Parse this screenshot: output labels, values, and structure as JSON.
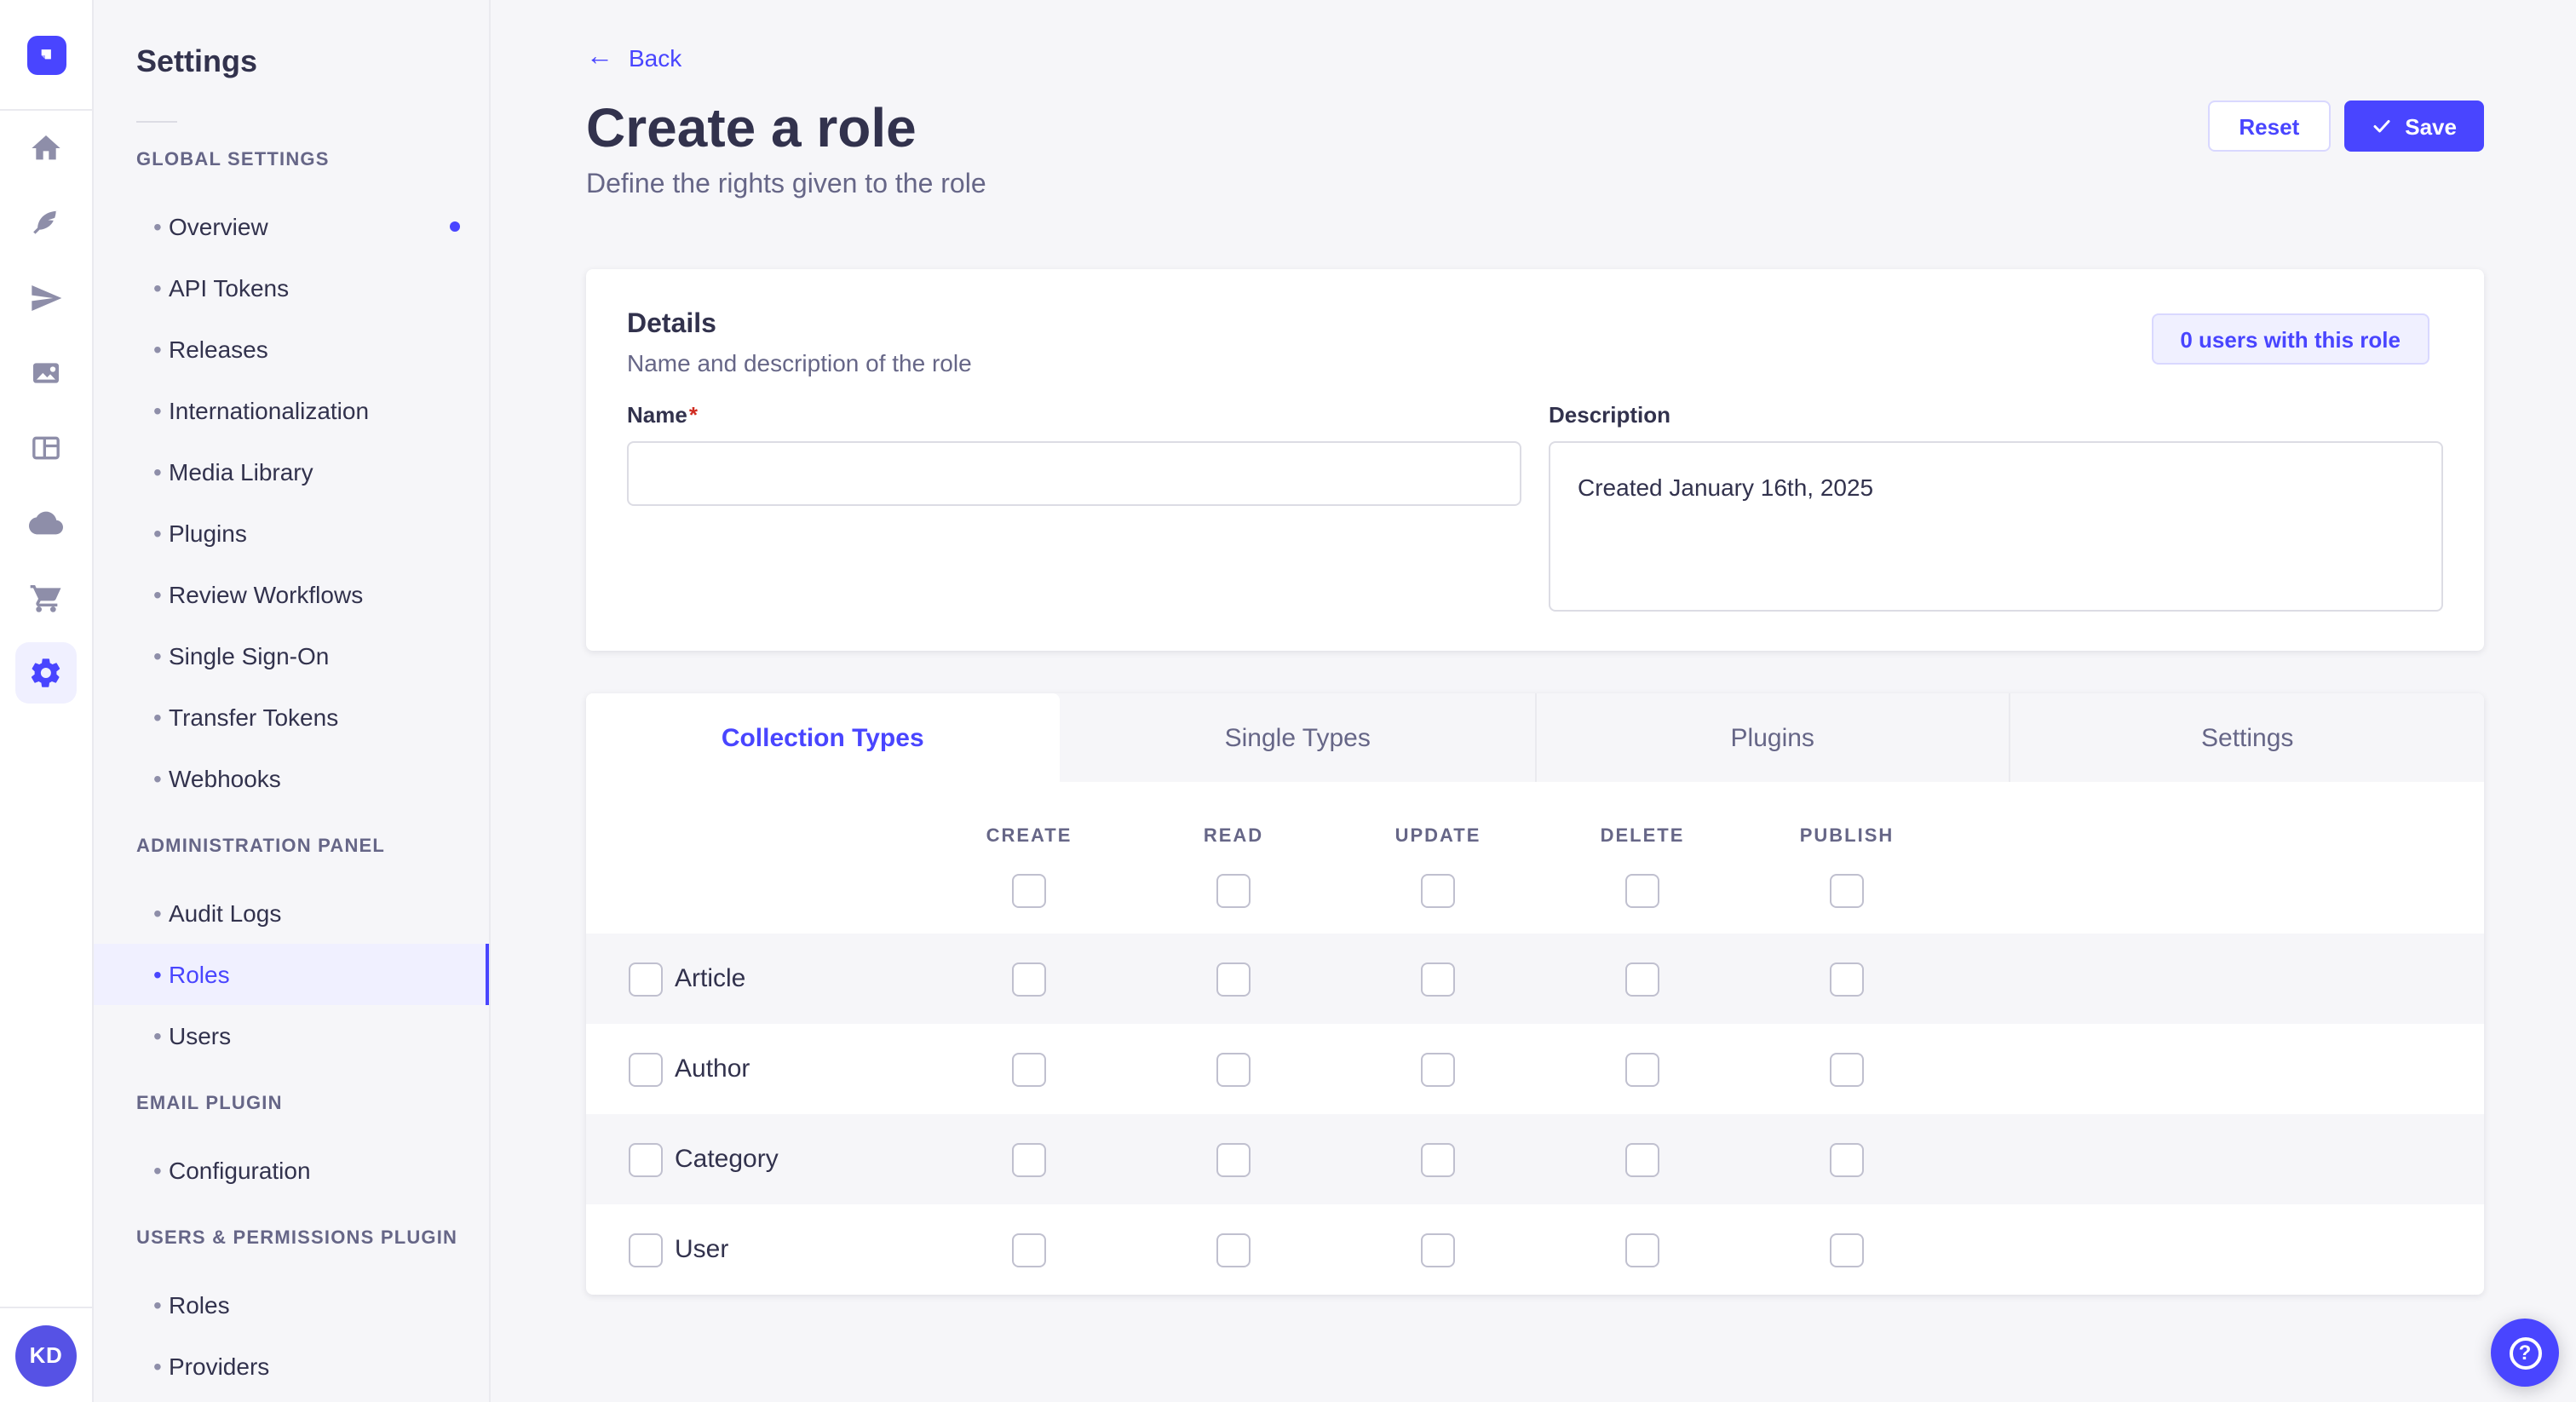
{
  "rail": {
    "avatar_initials": "KD",
    "bullet_glyph": "•",
    "icons": [
      "strapi-logo",
      "home-icon",
      "feather-icon",
      "send-plane-icon",
      "media-library-icon",
      "layout-icon",
      "cloud-icon",
      "marketplace-cart-icon",
      "settings-gear-icon"
    ]
  },
  "sidebar": {
    "title": "Settings",
    "bullet_glyph": "•",
    "sections": [
      {
        "label": "GLOBAL SETTINGS",
        "items": [
          {
            "label": "Overview",
            "dot": true
          },
          {
            "label": "API Tokens"
          },
          {
            "label": "Releases"
          },
          {
            "label": "Internationalization"
          },
          {
            "label": "Media Library"
          },
          {
            "label": "Plugins"
          },
          {
            "label": "Review Workflows"
          },
          {
            "label": "Single Sign-On"
          },
          {
            "label": "Transfer Tokens"
          },
          {
            "label": "Webhooks"
          }
        ]
      },
      {
        "label": "ADMINISTRATION PANEL",
        "items": [
          {
            "label": "Audit Logs"
          },
          {
            "label": "Roles",
            "active": true
          },
          {
            "label": "Users"
          }
        ]
      },
      {
        "label": "EMAIL PLUGIN",
        "items": [
          {
            "label": "Configuration"
          }
        ]
      },
      {
        "label": "USERS & PERMISSIONS PLUGIN",
        "items": [
          {
            "label": "Roles"
          },
          {
            "label": "Providers"
          }
        ]
      }
    ]
  },
  "header": {
    "back_label": "Back",
    "back_arrow_glyph": "←",
    "title": "Create a role",
    "subtitle": "Define the rights given to the role",
    "reset_label": "Reset",
    "save_label": "Save"
  },
  "details": {
    "title": "Details",
    "subtitle": "Name and description of the role",
    "users_count_label": "0 users with this role",
    "name_label": "Name",
    "required_mark": "*",
    "name_value": "",
    "description_label": "Description",
    "description_value": "Created January 16th, 2025"
  },
  "permissions": {
    "tabs": [
      {
        "label": "Collection Types",
        "active": true
      },
      {
        "label": "Single Types"
      },
      {
        "label": "Plugins"
      },
      {
        "label": "Settings"
      }
    ],
    "columns": [
      "CREATE",
      "READ",
      "UPDATE",
      "DELETE",
      "PUBLISH"
    ],
    "rows": [
      {
        "label": "Article"
      },
      {
        "label": "Author"
      },
      {
        "label": "Category"
      },
      {
        "label": "User"
      }
    ],
    "all_unchecked": true
  },
  "help": {
    "icon": "?"
  },
  "colors": {
    "primary": "#4945ff",
    "primary_bg": "#f0f0ff",
    "primary_border": "#d9d8ff",
    "text": "#32324d",
    "text_muted": "#666687",
    "border": "#dcdce4",
    "border_light": "#eaeaef",
    "page_bg": "#f6f6f9",
    "checkbox_border": "#c0c0cf",
    "required_red": "#d02b20",
    "avatar_bg": "#5652e5"
  }
}
